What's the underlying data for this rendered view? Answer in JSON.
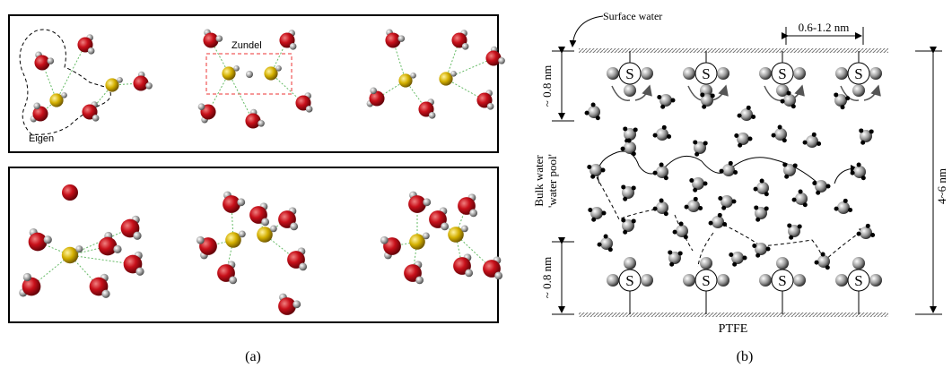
{
  "panel_a": {
    "eigen_label": "Eigen",
    "zundel_label": "Zundel",
    "caption": "(a)"
  },
  "panel_b": {
    "surface_label": "Surface water",
    "width_label": "0.6-1.2 nm",
    "top_layer_label": "~ 0.8 nm",
    "bulk_label": [
      "Bulk water",
      "'water pool'"
    ],
    "height_label": "4~6 nm",
    "bottom_layer_label": "~ 0.8 nm",
    "substrate_label": "PTFE",
    "sulfonate_labels": [
      "S",
      "S",
      "S",
      "S",
      "S",
      "S",
      "S",
      "S"
    ],
    "caption": "(b)"
  }
}
